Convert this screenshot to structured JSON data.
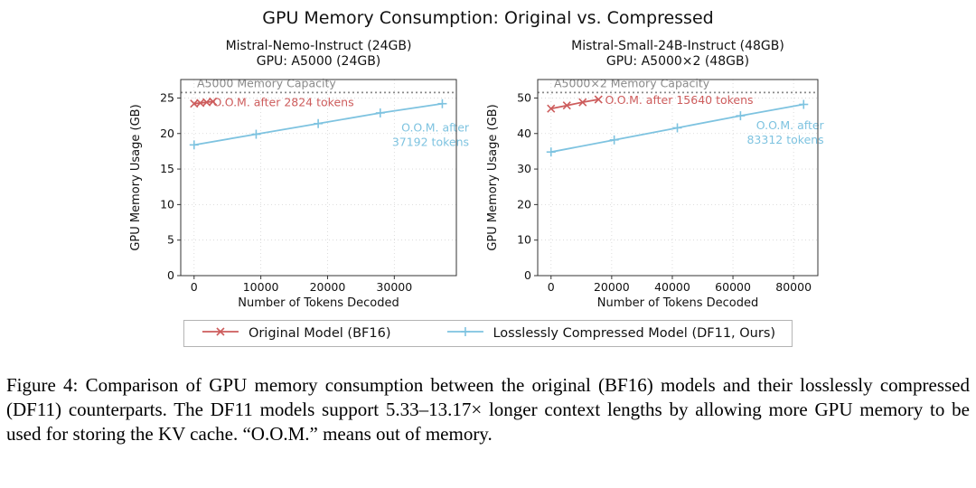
{
  "figure": {
    "title": "GPU Memory Consumption: Original vs. Compressed",
    "caption": "Figure 4: Comparison of GPU memory consumption between the original (BF16) models and their losslessly compressed (DF11) counterparts. The DF11 models support 5.33–13.17× longer context lengths by allowing more GPU memory to be used for storing the KV cache. “O.O.M.” means out of memory."
  },
  "colors": {
    "original": "#cd5c5c",
    "compressed": "#7ec3e0",
    "capacity": "#8a8a8a",
    "grid": "#d4d4d4",
    "axis": "#333333",
    "text": "#111111"
  },
  "legend": [
    {
      "label": "Original Model (BF16)",
      "marker": "x",
      "color_key": "original"
    },
    {
      "label": "Losslessly Compressed Model (DF11, Ours)",
      "marker": "+",
      "color_key": "compressed"
    }
  ],
  "chart_data": [
    {
      "type": "line",
      "title_lines": [
        "Mistral-Nemo-Instruct (24GB)",
        "GPU: A5000 (24GB)"
      ],
      "xlabel": "Number of Tokens Decoded",
      "ylabel": "GPU Memory Usage (GB)",
      "xlim": [
        -2000,
        39300
      ],
      "ylim": [
        0,
        27.6
      ],
      "xticks": [
        0,
        10000,
        20000,
        30000
      ],
      "yticks": [
        0,
        5,
        10,
        15,
        20,
        25
      ],
      "grid": true,
      "capacity": {
        "value": 25.77,
        "label": "A5000 Memory Capacity"
      },
      "series": [
        {
          "name": "Original Model (BF16)",
          "color_key": "original",
          "marker": "x",
          "oom_after_tokens": 2824,
          "x": [
            0,
            941,
            1882,
            2824
          ],
          "y": [
            24.2,
            24.3,
            24.4,
            24.5
          ],
          "annotation": {
            "lines": [
              "O.O.M. after 2824 tokens"
            ],
            "x": 2800,
            "y": 24.35,
            "anchor": "start"
          }
        },
        {
          "name": "Losslessly Compressed Model (DF11, Ours)",
          "color_key": "compressed",
          "marker": "+",
          "oom_after_tokens": 37192,
          "x": [
            0,
            9298,
            18596,
            27894,
            37192
          ],
          "y": [
            18.4,
            19.9,
            21.4,
            22.9,
            24.2
          ],
          "annotation": {
            "lines": [
              "O.O.M. after",
              "37192 tokens"
            ],
            "x": 41200,
            "y": 20.8,
            "anchor": "end"
          }
        }
      ]
    },
    {
      "type": "line",
      "title_lines": [
        "Mistral-Small-24B-Instruct (48GB)",
        "GPU: A5000×2 (48GB)"
      ],
      "xlabel": "Number of Tokens Decoded",
      "ylabel": "GPU Memory Usage (GB)",
      "xlim": [
        -4400,
        88000
      ],
      "ylim": [
        0,
        55.2
      ],
      "xticks": [
        0,
        20000,
        40000,
        60000,
        80000
      ],
      "yticks": [
        0,
        10,
        20,
        30,
        40,
        50
      ],
      "grid": true,
      "capacity": {
        "value": 51.54,
        "label": "A5000×2 Memory Capacity"
      },
      "series": [
        {
          "name": "Original Model (BF16)",
          "color_key": "original",
          "marker": "x",
          "oom_after_tokens": 15640,
          "x": [
            0,
            5213,
            10427,
            15640
          ],
          "y": [
            47.0,
            47.9,
            48.8,
            49.6
          ],
          "annotation": {
            "lines": [
              "O.O.M. after 15640 tokens"
            ],
            "x": 17800,
            "y": 49.3,
            "anchor": "start"
          }
        },
        {
          "name": "Losslessly Compressed Model (DF11, Ours)",
          "color_key": "compressed",
          "marker": "+",
          "oom_after_tokens": 83312,
          "x": [
            0,
            20828,
            41656,
            62484,
            83312
          ],
          "y": [
            34.8,
            38.2,
            41.6,
            45.0,
            48.2
          ],
          "annotation": {
            "lines": [
              "O.O.M. after",
              "83312 tokens"
            ],
            "x": 90000,
            "y": 42.2,
            "anchor": "end"
          }
        }
      ]
    }
  ]
}
